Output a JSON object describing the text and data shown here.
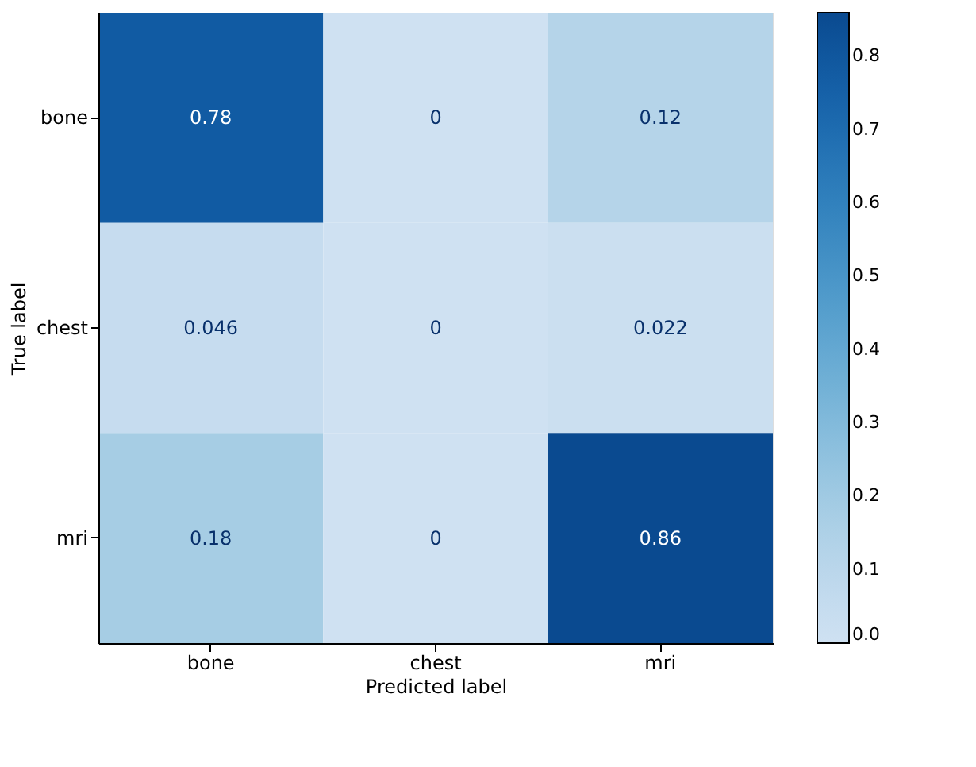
{
  "chart_data": {
    "type": "heatmap",
    "xlabel": "Predicted label",
    "ylabel": "True label",
    "categories": [
      "bone",
      "chest",
      "mri"
    ],
    "y_categories": [
      "bone",
      "chest",
      "mri"
    ],
    "cells": [
      [
        0.78,
        0,
        0.12
      ],
      [
        0.046,
        0,
        0.022
      ],
      [
        0.18,
        0,
        0.86
      ]
    ],
    "data_labels": true,
    "clim": [
      0,
      0.86
    ],
    "cticks": [
      {
        "value": 0,
        "label": "0.0"
      },
      {
        "value": 0.1,
        "label": "0.1"
      },
      {
        "value": 0.2,
        "label": "0.2"
      },
      {
        "value": 0.3,
        "label": "0.3"
      },
      {
        "value": 0.4,
        "label": "0.4"
      },
      {
        "value": 0.5,
        "label": "0.5"
      },
      {
        "value": 0.6,
        "label": "0.6"
      },
      {
        "value": 0.7,
        "label": "0.7"
      },
      {
        "value": 0.8,
        "label": "0.8"
      }
    ],
    "grid": false
  }
}
